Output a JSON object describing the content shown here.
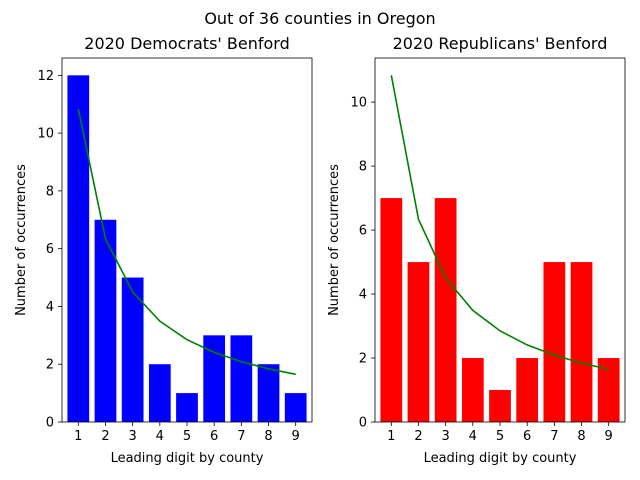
{
  "suptitle": "Out of 36 counties in Oregon",
  "chart_data": [
    {
      "type": "bar",
      "title": "2020 Democrats' Benford",
      "xlabel": "Leading digit by county",
      "ylabel": "Number of occurrences",
      "categories": [
        "1",
        "2",
        "3",
        "4",
        "5",
        "6",
        "7",
        "8",
        "9"
      ],
      "values": [
        12,
        7,
        5,
        2,
        1,
        3,
        3,
        2,
        1
      ],
      "bar_color": "#0000ff",
      "expected": [
        10.84,
        6.34,
        4.5,
        3.49,
        2.85,
        2.41,
        2.09,
        1.84,
        1.65
      ],
      "expected_color": "#008000",
      "ylim": [
        0,
        12.6
      ],
      "yticks": [
        "0",
        "2",
        "4",
        "6",
        "8",
        "10",
        "12"
      ],
      "ytick_values": [
        0,
        2,
        4,
        6,
        8,
        10,
        12
      ]
    },
    {
      "type": "bar",
      "title": "2020 Republicans' Benford",
      "xlabel": "Leading digit by county",
      "ylabel": "Number of occurrences",
      "categories": [
        "1",
        "2",
        "3",
        "4",
        "5",
        "6",
        "7",
        "8",
        "9"
      ],
      "values": [
        7,
        5,
        7,
        2,
        1,
        2,
        5,
        5,
        2
      ],
      "bar_color": "#ff0000",
      "expected": [
        10.84,
        6.34,
        4.5,
        3.49,
        2.85,
        2.41,
        2.09,
        1.84,
        1.65
      ],
      "expected_color": "#008000",
      "ylim": [
        0,
        11.38
      ],
      "yticks": [
        "0",
        "2",
        "4",
        "6",
        "8",
        "10"
      ],
      "ytick_values": [
        0,
        2,
        4,
        6,
        8,
        10
      ]
    }
  ]
}
